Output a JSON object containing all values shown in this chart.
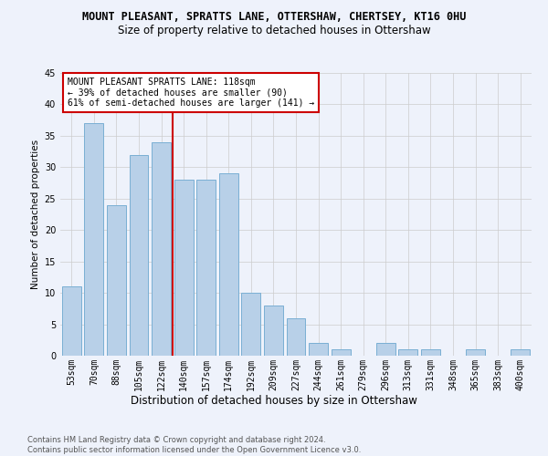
{
  "title": "MOUNT PLEASANT, SPRATTS LANE, OTTERSHAW, CHERTSEY, KT16 0HU",
  "subtitle": "Size of property relative to detached houses in Ottershaw",
  "xlabel": "Distribution of detached houses by size in Ottershaw",
  "ylabel": "Number of detached properties",
  "categories": [
    "53sqm",
    "70sqm",
    "88sqm",
    "105sqm",
    "122sqm",
    "140sqm",
    "157sqm",
    "174sqm",
    "192sqm",
    "209sqm",
    "227sqm",
    "244sqm",
    "261sqm",
    "279sqm",
    "296sqm",
    "313sqm",
    "331sqm",
    "348sqm",
    "365sqm",
    "383sqm",
    "400sqm"
  ],
  "values": [
    11,
    37,
    24,
    32,
    34,
    28,
    28,
    29,
    10,
    8,
    6,
    2,
    1,
    0,
    2,
    1,
    1,
    0,
    1,
    0,
    1
  ],
  "bar_color": "#b8d0e8",
  "bar_edge_color": "#7aafd4",
  "background_color": "#eef2fb",
  "grid_color": "#cccccc",
  "vline_color": "#cc0000",
  "vline_x": 4.5,
  "annotation_text": "MOUNT PLEASANT SPRATTS LANE: 118sqm\n← 39% of detached houses are smaller (90)\n61% of semi-detached houses are larger (141) →",
  "annotation_box_facecolor": "#ffffff",
  "annotation_box_edgecolor": "#cc0000",
  "ylim": [
    0,
    45
  ],
  "yticks": [
    0,
    5,
    10,
    15,
    20,
    25,
    30,
    35,
    40,
    45
  ],
  "footer_line1": "Contains HM Land Registry data © Crown copyright and database right 2024.",
  "footer_line2": "Contains public sector information licensed under the Open Government Licence v3.0.",
  "title_fontsize": 8.5,
  "subtitle_fontsize": 8.5,
  "xlabel_fontsize": 8.5,
  "ylabel_fontsize": 7.5,
  "tick_fontsize": 7,
  "annotation_fontsize": 7,
  "footer_fontsize": 6
}
